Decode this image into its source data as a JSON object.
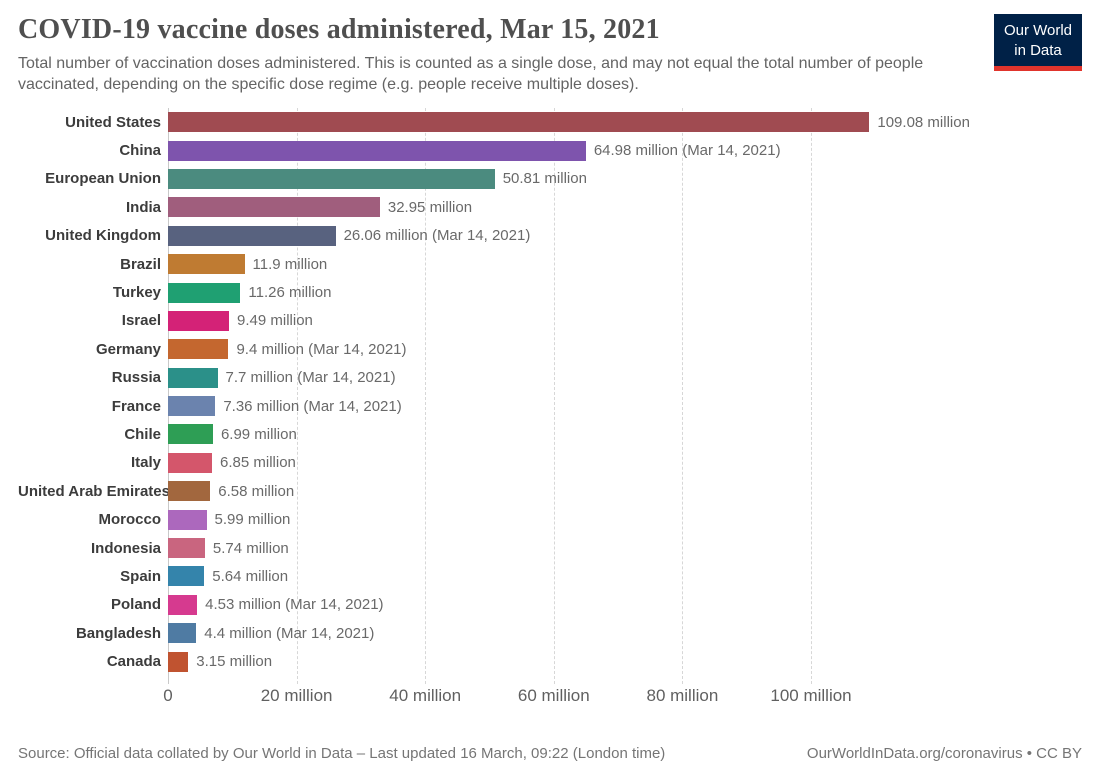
{
  "header": {
    "title": "COVID-19 vaccine doses administered, Mar 15, 2021",
    "subtitle": "Total number of vaccination doses administered. This is counted as a single dose, and may not equal the total number of people vaccinated, depending on the specific dose regime (e.g. people receive multiple doses).",
    "logo": {
      "line1": "Our World",
      "line2": "in Data",
      "bg_color": "#002147",
      "accent_color": "#e0342c"
    }
  },
  "chart_data": {
    "type": "bar",
    "orientation": "horizontal",
    "title": "COVID-19 vaccine doses administered, Mar 15, 2021",
    "xlabel": "",
    "ylabel": "",
    "unit": "million doses",
    "xlim": [
      0,
      142
    ],
    "grid": true,
    "x_ticks": [
      {
        "value": 0,
        "label": "0"
      },
      {
        "value": 20,
        "label": "20 million"
      },
      {
        "value": 40,
        "label": "40 million"
      },
      {
        "value": 60,
        "label": "60 million"
      },
      {
        "value": 80,
        "label": "80 million"
      },
      {
        "value": 100,
        "label": "100 million"
      }
    ],
    "bars": [
      {
        "label": "United States",
        "value": 109.08,
        "value_label": "109.08 million",
        "color": "#a04b51"
      },
      {
        "label": "China",
        "value": 64.98,
        "value_label": "64.98 million (Mar 14, 2021)",
        "color": "#7e54ad"
      },
      {
        "label": "European Union",
        "value": 50.81,
        "value_label": "50.81 million",
        "color": "#4b8b7f"
      },
      {
        "label": "India",
        "value": 32.95,
        "value_label": "32.95 million",
        "color": "#a05e7d"
      },
      {
        "label": "United Kingdom",
        "value": 26.06,
        "value_label": "26.06 million (Mar 14, 2021)",
        "color": "#58627f"
      },
      {
        "label": "Brazil",
        "value": 11.9,
        "value_label": "11.9 million",
        "color": "#bf7b32"
      },
      {
        "label": "Turkey",
        "value": 11.26,
        "value_label": "11.26 million",
        "color": "#1fa072"
      },
      {
        "label": "Israel",
        "value": 9.49,
        "value_label": "9.49 million",
        "color": "#d42277"
      },
      {
        "label": "Germany",
        "value": 9.4,
        "value_label": "9.4 million (Mar 14, 2021)",
        "color": "#c4672f"
      },
      {
        "label": "Russia",
        "value": 7.7,
        "value_label": "7.7 million (Mar 14, 2021)",
        "color": "#2b9089"
      },
      {
        "label": "France",
        "value": 7.36,
        "value_label": "7.36 million (Mar 14, 2021)",
        "color": "#6b83ae"
      },
      {
        "label": "Chile",
        "value": 6.99,
        "value_label": "6.99 million",
        "color": "#2e9e55"
      },
      {
        "label": "Italy",
        "value": 6.85,
        "value_label": "6.85 million",
        "color": "#d4566b"
      },
      {
        "label": "United Arab Emirates",
        "value": 6.58,
        "value_label": "6.58 million",
        "color": "#a2673e"
      },
      {
        "label": "Morocco",
        "value": 5.99,
        "value_label": "5.99 million",
        "color": "#ac68bd"
      },
      {
        "label": "Indonesia",
        "value": 5.74,
        "value_label": "5.74 million",
        "color": "#c9657f"
      },
      {
        "label": "Spain",
        "value": 5.64,
        "value_label": "5.64 million",
        "color": "#3484ab"
      },
      {
        "label": "Poland",
        "value": 4.53,
        "value_label": "4.53 million (Mar 14, 2021)",
        "color": "#d63a8f"
      },
      {
        "label": "Bangladesh",
        "value": 4.4,
        "value_label": "4.4 million (Mar 14, 2021)",
        "color": "#4f7ba3"
      },
      {
        "label": "Canada",
        "value": 3.15,
        "value_label": "3.15 million",
        "color": "#c05330"
      }
    ]
  },
  "footer": {
    "source": "Source: Official data collated by Our World in Data – Last updated 16 March, 09:22 (London time)",
    "link": "OurWorldInData.org/coronavirus • CC BY"
  }
}
